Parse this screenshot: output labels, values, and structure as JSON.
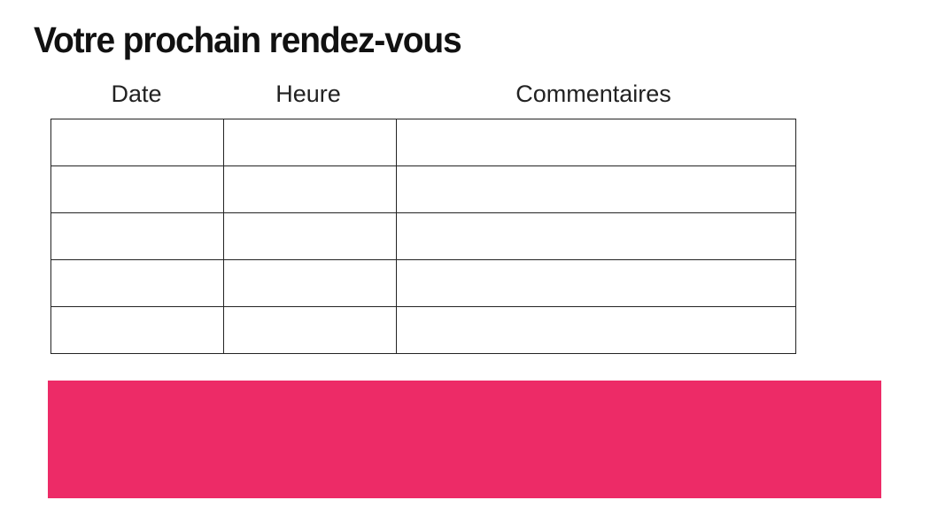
{
  "title": "Votre prochain rendez-vous",
  "table": {
    "columns": [
      "Date",
      "Heure",
      "Commentaires"
    ],
    "rows": [
      [
        "",
        "",
        ""
      ],
      [
        "",
        "",
        ""
      ],
      [
        "",
        "",
        ""
      ],
      [
        "",
        "",
        ""
      ],
      [
        "",
        "",
        ""
      ]
    ]
  },
  "colors": {
    "banner_pink": "#ED2B67",
    "text": "#111111",
    "table_border": "#232323"
  }
}
